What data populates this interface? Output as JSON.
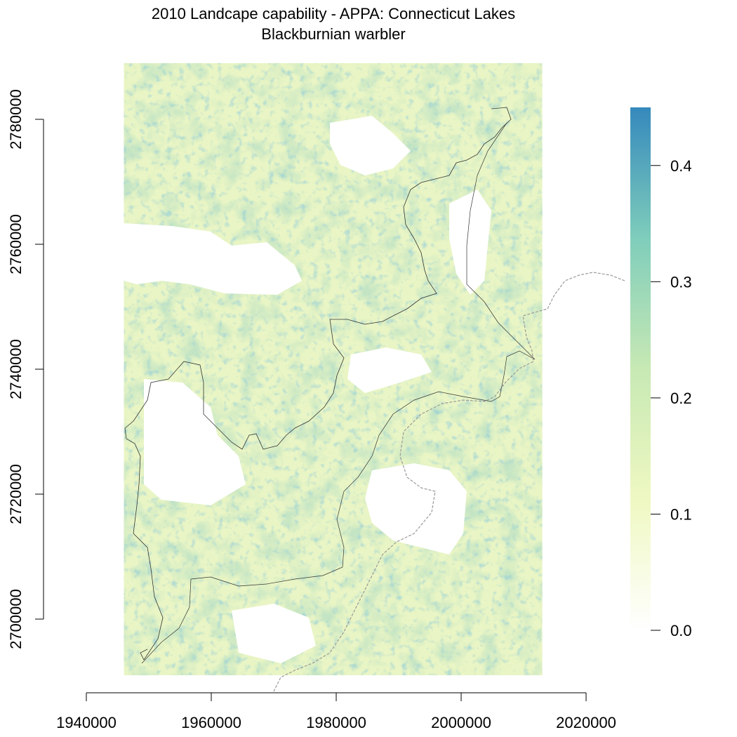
{
  "chart_data": {
    "type": "heatmap",
    "title": "2010 Landcape capability - APPA: Connecticut Lakes",
    "subtitle": "Blackburnian warbler",
    "xlabel": "",
    "ylabel": "",
    "x_ticks": [
      "1940000",
      "1960000",
      "1980000",
      "2000000",
      "2020000"
    ],
    "y_ticks": [
      "2700000",
      "2720000",
      "2740000",
      "2760000",
      "2780000"
    ],
    "x_tick_values": [
      1940000,
      1960000,
      1980000,
      2000000,
      2020000
    ],
    "y_tick_values": [
      2700000,
      2720000,
      2740000,
      2760000,
      2780000
    ],
    "xlim": [
      1940000,
      2020000
    ],
    "ylim": [
      2690000,
      2789000
    ],
    "raster_extent": {
      "x": [
        1946000,
        2013000
      ],
      "y": [
        2691000,
        2789000
      ]
    },
    "colorbar": {
      "range": [
        0.0,
        0.45
      ],
      "ticks": [
        "0.0",
        "0.1",
        "0.2",
        "0.3",
        "0.4"
      ],
      "tick_values": [
        0.0,
        0.1,
        0.2,
        0.3,
        0.4
      ],
      "colors": [
        "#ffffff",
        "#eff8c2",
        "#c7e9b4",
        "#7fcdbb",
        "#3589bc"
      ]
    },
    "grid": false,
    "legend": "right"
  }
}
